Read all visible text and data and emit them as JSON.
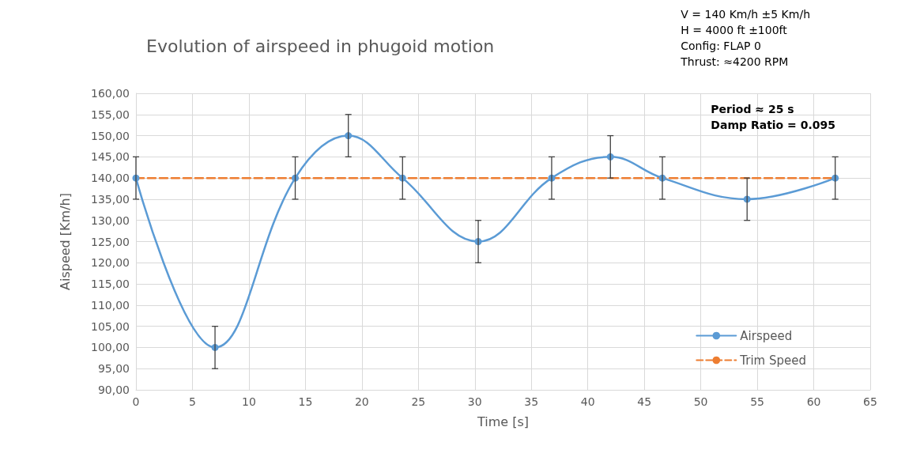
{
  "chart_data": {
    "type": "line",
    "title": "Evolution of airspeed in phugoid motion",
    "xlabel": "Time [s]",
    "ylabel": "Aispeed [Km/h]",
    "annotations": [
      "V = 140 Km/h ±5 Km/h\nH = 4000 ft ±100ft\nConfig: FLAP 0\nThrust: ≈4200 RPM",
      "Period ≈ 25 s\nDamp Ratio = 0.095"
    ],
    "series": [
      {
        "name": "Airspeed",
        "color": "#5b9bd5",
        "marker": "circle",
        "line_style": "solid",
        "x": [
          0,
          7,
          14.1,
          18.8,
          23.6,
          30.3,
          36.8,
          42,
          46.6,
          54.1,
          61.9
        ],
        "values": [
          140,
          100,
          140,
          150,
          140,
          125,
          140,
          145,
          140,
          135,
          140
        ],
        "errors": [
          5,
          5,
          5,
          5,
          5,
          5,
          5,
          5,
          5,
          5,
          5
        ]
      },
      {
        "name": "Trim Speed",
        "color": "#ed7d31",
        "marker": "none",
        "line_style": "dashed",
        "x": [
          0,
          62
        ],
        "values": [
          140,
          140
        ]
      }
    ],
    "xlim": [
      0,
      65
    ],
    "xticks": [
      0,
      5,
      10,
      15,
      20,
      25,
      30,
      35,
      40,
      45,
      50,
      55,
      60,
      65
    ],
    "ylim": [
      90,
      160
    ],
    "yticks": [
      {
        "value": 90,
        "label": "90,00"
      },
      {
        "value": 95,
        "label": "95,00"
      },
      {
        "value": 100,
        "label": "100,00"
      },
      {
        "value": 105,
        "label": "105,00"
      },
      {
        "value": 110,
        "label": "110,00"
      },
      {
        "value": 115,
        "label": "115,00"
      },
      {
        "value": 120,
        "label": "120,00"
      },
      {
        "value": 125,
        "label": "125,00"
      },
      {
        "value": 130,
        "label": "130,00"
      },
      {
        "value": 135,
        "label": "135,00"
      },
      {
        "value": 140,
        "label": "140,00"
      },
      {
        "value": 145,
        "label": "145,00"
      },
      {
        "value": 150,
        "label": "150,00"
      },
      {
        "value": 155,
        "label": "155,00"
      },
      {
        "value": 160,
        "label": "160,00"
      }
    ],
    "grid": true,
    "legend": "bottom right"
  }
}
